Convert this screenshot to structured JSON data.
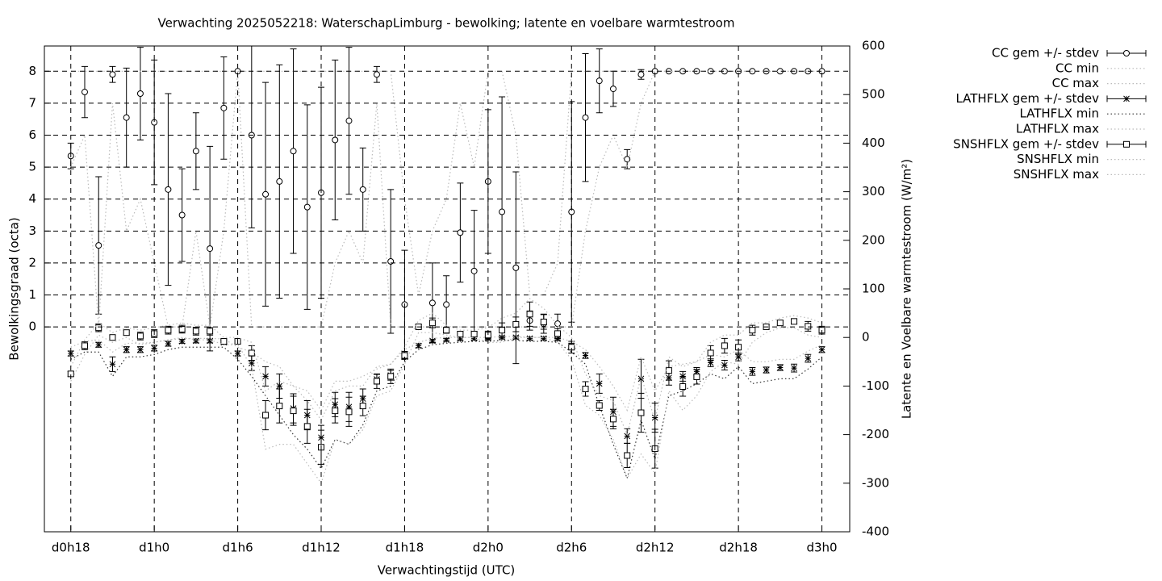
{
  "chart_data": {
    "type": "line",
    "title": "Verwachting 2025052218: WaterschapLimburg - bewolking; latente en voelbare warmtestroom",
    "xlabel": "Verwachtingstijd (UTC)",
    "ylabel": "Bewolkingsgraad (octa)",
    "y2label": "Latente en Voelbare warmtestroom (W/m²)",
    "x": [
      18,
      19,
      20,
      21,
      22,
      23,
      24,
      25,
      26,
      27,
      28,
      29,
      30,
      31,
      32,
      33,
      34,
      35,
      36,
      37,
      38,
      39,
      40,
      41,
      42,
      43,
      44,
      45,
      46,
      47,
      48,
      49,
      50,
      51,
      52,
      53,
      54,
      55,
      56,
      57,
      58,
      59,
      60,
      61,
      62,
      63,
      64,
      65,
      66,
      67,
      68,
      69,
      70,
      71,
      72
    ],
    "xlim": [
      16.1,
      74
    ],
    "xticks": [
      {
        "value": 18,
        "label": "d0h18"
      },
      {
        "value": 24,
        "label": "d1h0"
      },
      {
        "value": 30,
        "label": "d1h6"
      },
      {
        "value": 36,
        "label": "d1h12"
      },
      {
        "value": 42,
        "label": "d1h18"
      },
      {
        "value": 48,
        "label": "d2h0"
      },
      {
        "value": 54,
        "label": "d2h6"
      },
      {
        "value": 60,
        "label": "d2h12"
      },
      {
        "value": 66,
        "label": "d2h18"
      },
      {
        "value": 72,
        "label": "d3h0"
      }
    ],
    "ylim": [
      -6.41,
      8.79
    ],
    "yticks": [
      0,
      1,
      2,
      3,
      4,
      5,
      6,
      7,
      8
    ],
    "y2lim": [
      -400,
      600
    ],
    "y2ticks": [
      -400,
      -300,
      -200,
      -100,
      0,
      100,
      200,
      300,
      400,
      500,
      600
    ],
    "grid": true,
    "legend": "top-right",
    "series": [
      {
        "name": "CC gem +/- stdev",
        "color": "#000000",
        "axis": "y",
        "marker": "circle",
        "values": [
          5.35,
          7.35,
          2.55,
          7.9,
          6.55,
          7.3,
          6.4,
          4.3,
          3.5,
          5.5,
          2.45,
          6.85,
          8,
          6,
          4.15,
          4.55,
          5.5,
          3.75,
          4.2,
          5.85,
          6.45,
          4.3,
          7.9,
          2.05,
          0.7,
          0,
          0.75,
          0.7,
          2.95,
          1.75,
          4.55,
          3.6,
          1.85,
          0.2,
          0.1,
          0.1,
          3.6,
          6.55,
          7.7,
          7.45,
          5.25,
          7.9,
          8,
          8,
          8,
          8,
          8,
          8,
          8,
          8,
          8,
          8,
          8,
          8,
          8
        ],
        "errors": [
          0.4,
          0.8,
          2.15,
          0.25,
          1.55,
          1.45,
          1.95,
          3.0,
          1.45,
          1.2,
          3.2,
          1.6,
          0,
          2.9,
          3.5,
          3.65,
          3.2,
          3.2,
          3.3,
          2.5,
          2.3,
          1.3,
          0.25,
          2.25,
          1.7,
          0,
          1.25,
          0.9,
          1.55,
          1.9,
          2.25,
          3.6,
          3.0,
          0.3,
          0.3,
          0.3,
          3.45,
          2.0,
          1.0,
          0.55,
          0.3,
          0.15,
          0,
          0,
          0,
          0,
          0,
          0,
          0,
          0,
          0,
          0,
          0,
          0,
          0
        ]
      },
      {
        "name": "CC min",
        "color": "#bbbbbb",
        "axis": "y",
        "line": "dotted",
        "values": [
          5,
          6,
          0,
          7,
          3,
          4,
          2,
          0,
          0,
          3,
          0,
          3,
          8,
          0,
          0,
          0,
          0,
          0,
          0,
          2,
          3,
          2,
          7,
          0,
          0,
          0,
          0,
          0,
          0,
          0,
          0,
          0,
          0,
          0,
          0,
          0,
          0,
          3,
          5,
          6,
          5,
          7,
          8,
          8,
          8,
          8,
          8,
          8,
          8,
          8,
          8,
          8,
          8,
          8,
          8
        ]
      },
      {
        "name": "CC max",
        "color": "#bbbbbb",
        "axis": "y",
        "line": "dotted",
        "values": [
          8,
          8,
          8,
          8,
          8,
          8,
          8,
          8,
          8,
          8,
          8,
          8,
          8,
          8,
          8,
          8,
          8,
          8,
          8,
          8,
          8,
          8,
          8,
          8,
          4,
          1,
          3,
          4,
          7,
          5,
          8,
          8,
          6,
          1,
          1,
          2,
          8,
          8,
          8,
          8,
          8,
          8,
          8,
          8,
          8,
          8,
          8,
          8,
          8,
          8,
          8,
          8,
          8,
          8,
          8
        ]
      },
      {
        "name": "LATHFLX gem +/- stdev",
        "color": "#000000",
        "axis": "y2",
        "marker": "star",
        "values": [
          -33,
          -17,
          -15,
          -55,
          -25,
          -25,
          -22,
          -13,
          -8,
          -7,
          -7,
          -10,
          -33,
          -53,
          -80,
          -100,
          -146,
          -160,
          -206,
          -138,
          -143,
          -126,
          -86,
          -78,
          -37,
          -17,
          -7,
          -5,
          -3,
          -2,
          -2,
          0,
          0,
          -2,
          -2,
          -3,
          -17,
          -37,
          -95,
          -153,
          -203,
          -85,
          -165,
          -83,
          -80,
          -70,
          -52,
          -57,
          -40,
          -70,
          -67,
          -62,
          -63,
          -43,
          -25
        ],
        "errors": [
          5,
          5,
          5,
          15,
          6,
          6,
          6,
          5,
          4,
          4,
          4,
          4,
          5,
          15,
          20,
          25,
          30,
          30,
          25,
          25,
          30,
          20,
          10,
          10,
          8,
          4,
          3,
          3,
          3,
          3,
          3,
          3,
          3,
          3,
          3,
          3,
          5,
          6,
          20,
          30,
          15,
          40,
          30,
          15,
          10,
          8,
          8,
          10,
          8,
          8,
          6,
          6,
          8,
          8,
          6
        ]
      },
      {
        "name": "LATHFLX min",
        "color": "#333333",
        "axis": "y2",
        "line": "dotted",
        "values": [
          -45,
          -30,
          -30,
          -80,
          -40,
          -40,
          -35,
          -25,
          -20,
          -20,
          -20,
          -20,
          -45,
          -80,
          -120,
          -160,
          -200,
          -230,
          -270,
          -210,
          -220,
          -180,
          -110,
          -100,
          -50,
          -25,
          -15,
          -12,
          -10,
          -8,
          -8,
          -6,
          -6,
          -8,
          -8,
          -10,
          -30,
          -55,
          -140,
          -220,
          -290,
          -170,
          -250,
          -120,
          -110,
          -95,
          -75,
          -85,
          -60,
          -95,
          -90,
          -85,
          -85,
          -65,
          -40
        ]
      },
      {
        "name": "LATHFLX max",
        "color": "#bbbbbb",
        "axis": "y2",
        "line": "dotted",
        "values": [
          -20,
          -8,
          -5,
          -30,
          -12,
          -12,
          -10,
          -5,
          -2,
          -2,
          -2,
          -3,
          -20,
          -30,
          -50,
          -60,
          -100,
          -110,
          -150,
          -90,
          -90,
          -80,
          -65,
          -55,
          -25,
          -10,
          -2,
          0,
          0,
          0,
          0,
          2,
          2,
          0,
          0,
          0,
          -8,
          -25,
          -60,
          -100,
          -150,
          -40,
          -110,
          -60,
          -55,
          -50,
          -35,
          -40,
          -25,
          -50,
          -50,
          -45,
          -45,
          -28,
          -15
        ]
      },
      {
        "name": "SNSHFLX gem +/- stdev",
        "color": "#000000",
        "axis": "y2",
        "marker": "square",
        "values": [
          -75,
          -17,
          20,
          0,
          10,
          3,
          8,
          15,
          17,
          13,
          13,
          -8,
          -8,
          -32,
          -160,
          -141,
          -151,
          -183,
          -226,
          -151,
          -153,
          -141,
          -90,
          -80,
          -37,
          22,
          30,
          15,
          7,
          7,
          5,
          15,
          27,
          48,
          32,
          8,
          -20,
          -106,
          -140,
          -168,
          -243,
          -155,
          -229,
          -68,
          -101,
          -81,
          -32,
          -17,
          -20,
          15,
          22,
          30,
          33,
          23,
          15
        ],
        "errors": [
          5,
          8,
          8,
          5,
          5,
          8,
          8,
          8,
          8,
          8,
          8,
          5,
          5,
          15,
          30,
          35,
          30,
          35,
          35,
          25,
          30,
          20,
          15,
          15,
          8,
          4,
          10,
          5,
          5,
          5,
          8,
          15,
          15,
          25,
          15,
          10,
          12,
          15,
          10,
          20,
          25,
          40,
          40,
          20,
          20,
          15,
          15,
          15,
          15,
          10,
          5,
          5,
          5,
          10,
          8
        ]
      },
      {
        "name": "SNSHFLX min",
        "color": "#bbbbbb",
        "axis": "y2",
        "line": "dotted",
        "values": [
          -90,
          -35,
          5,
          -10,
          0,
          -15,
          -10,
          -5,
          0,
          -5,
          -5,
          -15,
          -15,
          -60,
          -230,
          -220,
          -220,
          -260,
          -300,
          -210,
          -220,
          -190,
          -120,
          -110,
          -55,
          10,
          10,
          5,
          0,
          0,
          -10,
          -10,
          0,
          0,
          0,
          -10,
          -45,
          -140,
          -160,
          -210,
          -290,
          -240,
          -280,
          -110,
          -150,
          -120,
          -70,
          -50,
          -55,
          -10,
          10,
          20,
          20,
          5,
          0
        ]
      },
      {
        "name": "SNSHFLX max",
        "color": "#bbbbbb",
        "axis": "y2",
        "line": "dotted",
        "values": [
          -60,
          -5,
          30,
          10,
          20,
          15,
          20,
          25,
          30,
          25,
          25,
          0,
          0,
          -10,
          -110,
          -90,
          -100,
          -130,
          -170,
          -110,
          -100,
          -100,
          -60,
          -55,
          -20,
          35,
          50,
          25,
          15,
          15,
          20,
          40,
          50,
          80,
          60,
          25,
          0,
          -75,
          -120,
          -130,
          -200,
          -80,
          -170,
          -40,
          -60,
          -50,
          -10,
          5,
          5,
          30,
          30,
          40,
          45,
          40,
          30
        ]
      }
    ]
  }
}
